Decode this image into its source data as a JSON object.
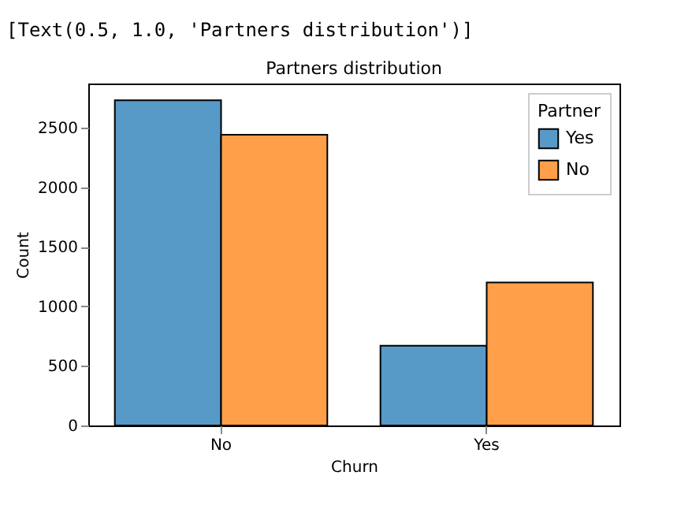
{
  "chart_data": {
    "type": "bar",
    "title": "Partners distribution",
    "xlabel": "Churn",
    "ylabel": "Count",
    "legend_title": "Partner",
    "categories": [
      "No",
      "Yes"
    ],
    "series": [
      {
        "name": "Yes",
        "color": "#5799c7",
        "values": [
          2730,
          670
        ]
      },
      {
        "name": "No",
        "color": "#ff9f4a",
        "values": [
          2440,
          1200
        ]
      }
    ],
    "ylim": [
      0,
      2870
    ],
    "yticks": [
      0,
      500,
      1000,
      1500,
      2000,
      2500
    ],
    "grid": false,
    "legend": "top right",
    "annotations": [
      "[Text(0.5, 1.0, 'Partners distribution')]"
    ]
  }
}
